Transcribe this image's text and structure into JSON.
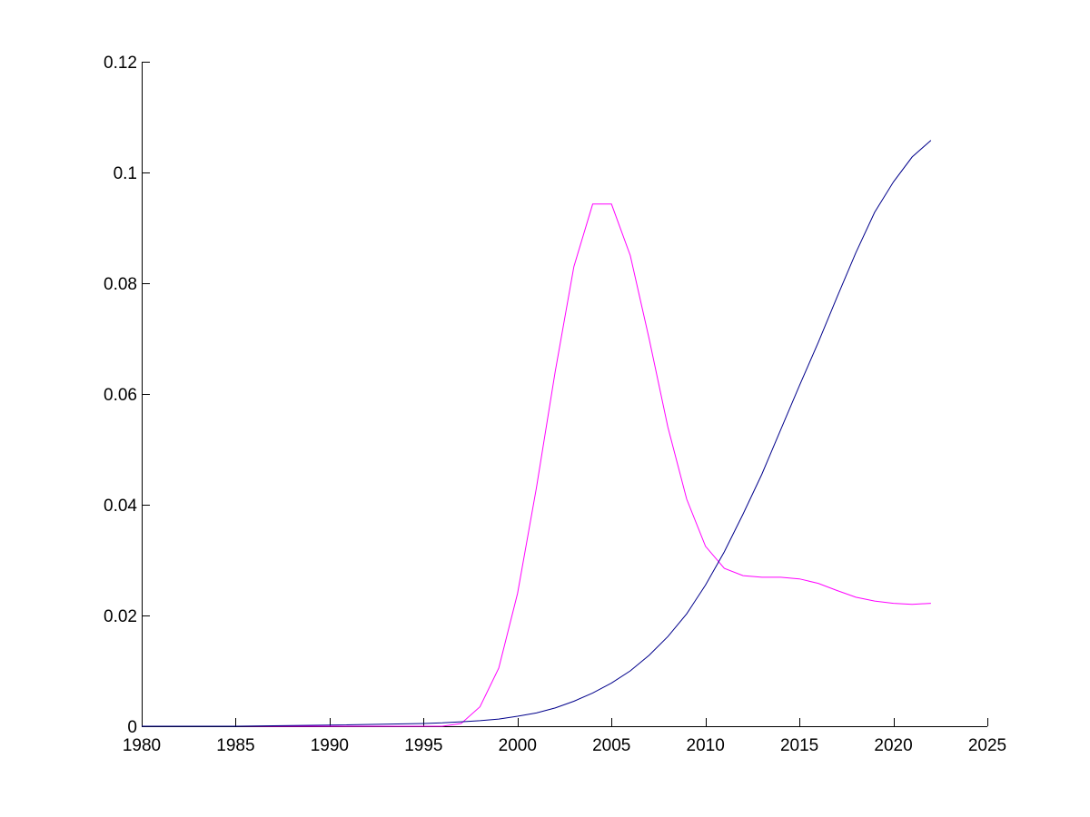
{
  "chart_data": {
    "type": "line",
    "title": "",
    "xlabel": "",
    "ylabel": "",
    "xlim": [
      1980,
      2025
    ],
    "ylim": [
      0,
      0.12
    ],
    "grid": false,
    "legend": "none",
    "x_ticks": [
      1980,
      1985,
      1990,
      1995,
      2000,
      2005,
      2010,
      2015,
      2020,
      2025
    ],
    "x_tick_labels": [
      "1980",
      "1985",
      "1990",
      "1995",
      "2000",
      "2005",
      "2010",
      "2015",
      "2020",
      "2025"
    ],
    "y_ticks": [
      0,
      0.02,
      0.04,
      0.06,
      0.08,
      0.1,
      0.12
    ],
    "y_tick_labels": [
      "0",
      "0.02",
      "0.04",
      "0.06",
      "0.08",
      "0.1",
      "0.12"
    ],
    "series": [
      {
        "color": "#ff00ff",
        "x": [
          1980,
          1985,
          1990,
          1995,
          1996,
          1997,
          1998,
          1999,
          2000,
          2001,
          2002,
          2003,
          2004,
          2005,
          2006,
          2007,
          2008,
          2009,
          2010,
          2011,
          2012,
          2013,
          2014,
          2015,
          2016,
          2017,
          2018,
          2019,
          2020,
          2021,
          2022
        ],
        "y": [
          0,
          0,
          0,
          0,
          0,
          0.0005,
          0.0035,
          0.0105,
          0.024,
          0.043,
          0.064,
          0.083,
          0.0943,
          0.0943,
          0.085,
          0.07,
          0.054,
          0.041,
          0.0325,
          0.0285,
          0.0272,
          0.0269,
          0.0269,
          0.0266,
          0.0258,
          0.0245,
          0.0233,
          0.0226,
          0.0222,
          0.022,
          0.0222
        ]
      },
      {
        "color": "#00008b",
        "x": [
          1980,
          1985,
          1990,
          1995,
          1996,
          1997,
          1998,
          1999,
          2000,
          2001,
          2002,
          2003,
          2004,
          2005,
          2006,
          2007,
          2008,
          2009,
          2010,
          2011,
          2012,
          2013,
          2014,
          2015,
          2016,
          2017,
          2018,
          2019,
          2020,
          2021,
          2022
        ],
        "y": [
          0,
          0,
          0.0002,
          0.0005,
          0.0006,
          0.0008,
          0.001,
          0.0013,
          0.0018,
          0.0024,
          0.0033,
          0.0045,
          0.006,
          0.0078,
          0.01,
          0.0128,
          0.0162,
          0.0203,
          0.0255,
          0.0315,
          0.0383,
          0.0455,
          0.0535,
          0.0615,
          0.0693,
          0.0775,
          0.0855,
          0.0928,
          0.0983,
          0.1028,
          0.1058
        ]
      }
    ]
  }
}
